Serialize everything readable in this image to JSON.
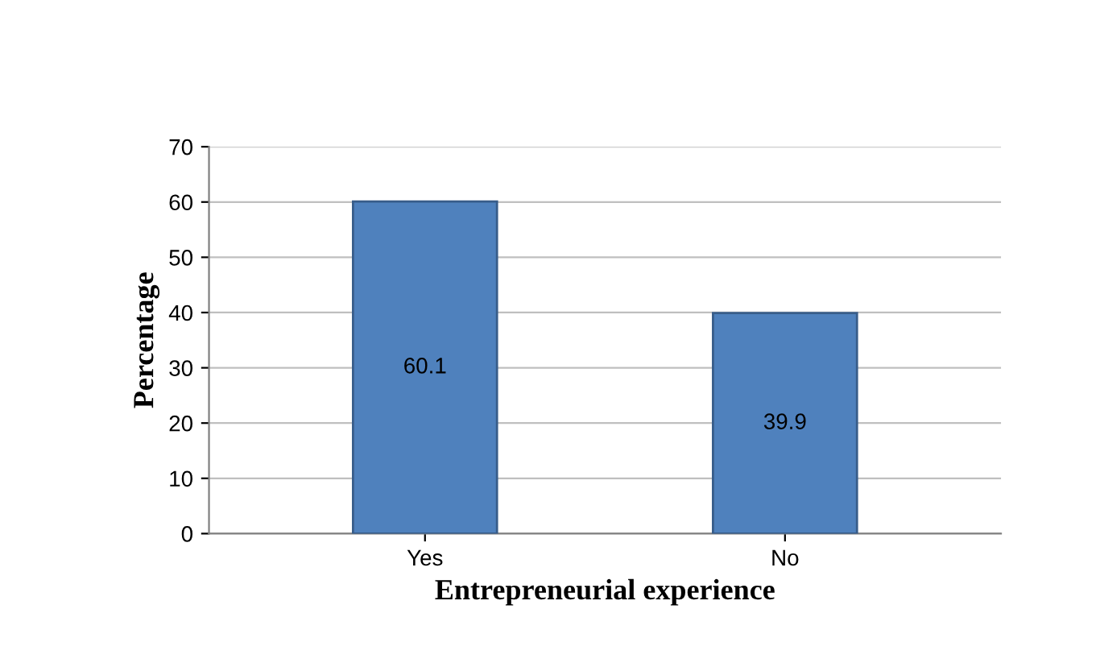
{
  "chart_data": {
    "type": "bar",
    "xlabel": "Entrepreneurial experience",
    "ylabel": "Percentage",
    "categories": [
      "Yes",
      "No"
    ],
    "values": [
      60.1,
      39.9
    ],
    "color": "#4f81bd",
    "ylim": [
      0,
      70
    ],
    "yticks": [
      0,
      10,
      20,
      30,
      40,
      50,
      60,
      70
    ],
    "grid": "y",
    "data_labels": true
  }
}
